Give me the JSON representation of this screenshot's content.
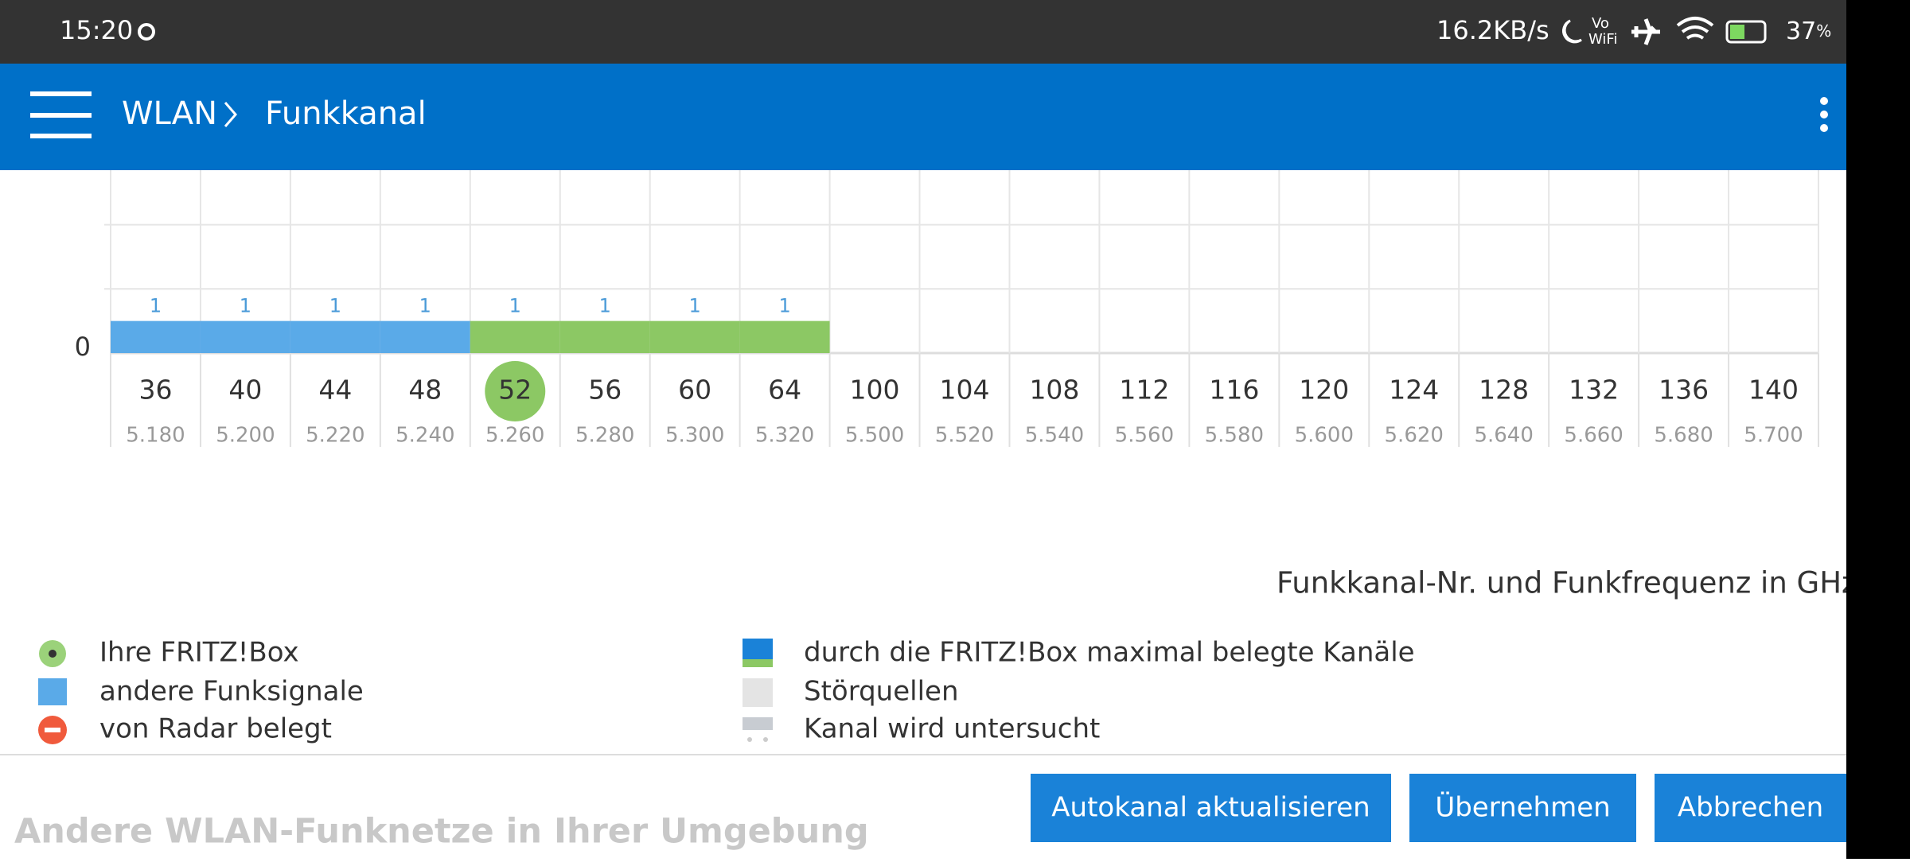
{
  "status_bar": {
    "time": "15:20",
    "speed": "16.2KB/s",
    "vo": "Vo",
    "wifi": "WiFi",
    "battery": "37",
    "battery_unit": "%"
  },
  "app_bar": {
    "section": "WLAN",
    "page": "Funkkanal"
  },
  "chart_data": {
    "type": "bar",
    "x_label": "Funkkanal-Nr. und Funkfrequenz in GHz",
    "categories": [
      36,
      40,
      44,
      48,
      52,
      56,
      60,
      64,
      100,
      104,
      108,
      112,
      116,
      120,
      124,
      128,
      132,
      136,
      140
    ],
    "frequencies": [
      "5.180",
      "5.200",
      "5.220",
      "5.240",
      "5.260",
      "5.280",
      "5.300",
      "5.320",
      "5.500",
      "5.520",
      "5.540",
      "5.560",
      "5.580",
      "5.600",
      "5.620",
      "5.640",
      "5.660",
      "5.680",
      "5.700"
    ],
    "values": [
      1,
      1,
      1,
      1,
      1,
      1,
      1,
      1,
      null,
      null,
      null,
      null,
      null,
      null,
      null,
      null,
      null,
      null,
      null
    ],
    "colors": [
      "#5aaae8",
      "#5aaae8",
      "#5aaae8",
      "#5aaae8",
      "#8cc864",
      "#8cc864",
      "#8cc864",
      "#8cc864",
      null,
      null,
      null,
      null,
      null,
      null,
      null,
      null,
      null,
      null,
      null
    ],
    "highlight": 52,
    "ylim": [
      0,
      5.7
    ],
    "yticks": [
      0
    ],
    "gridlines": [
      2,
      4
    ]
  },
  "legend": {
    "left": [
      "Ihre FRITZ!Box",
      "andere Funksignale",
      "von Radar belegt"
    ],
    "right": [
      "durch die FRITZ!Box maximal belegte Kanäle",
      "Störquellen",
      "Kanal wird untersucht"
    ]
  },
  "buttons": [
    "Autokanal aktualisieren",
    "Übernehmen",
    "Abbrechen"
  ],
  "footer": "Andere WLAN-Funknetze in Ihrer Umgebung"
}
